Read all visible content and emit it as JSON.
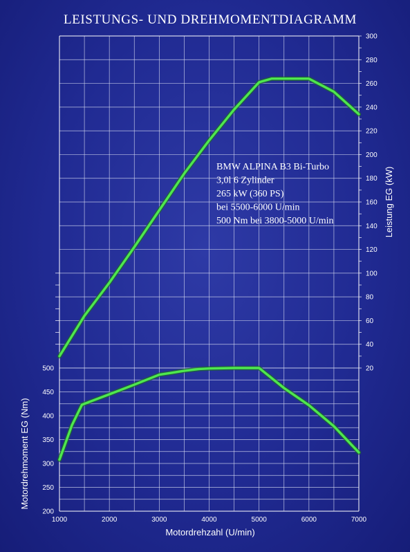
{
  "chart_data": {
    "type": "line",
    "title": "LEISTUNGS- UND DREHMOMENTDIAGRAMM",
    "xlabel": "Motordrehzahl (U/min)",
    "x_ticks": [
      1000,
      2000,
      3000,
      4000,
      5000,
      6000,
      7000
    ],
    "xlim": [
      1000,
      7000
    ],
    "grid": true,
    "annotation": [
      "BMW ALPINA B3 Bi-Turbo",
      "3,0l  6 Zylinder",
      "265 kW (360 PS)",
      "bei 5500-6000 U/min",
      "500 Nm bei 3800-5000  U/min"
    ],
    "series": [
      {
        "axis": "right",
        "axis_label": "Leistung EG (kW)",
        "ylim": [
          20,
          300
        ],
        "y_ticks": [
          20,
          40,
          60,
          80,
          100,
          120,
          140,
          160,
          180,
          200,
          220,
          240,
          260,
          280,
          300
        ],
        "color": "#4ee84e",
        "points": [
          [
            1000,
            30
          ],
          [
            1500,
            64
          ],
          [
            2000,
            92
          ],
          [
            2500,
            122
          ],
          [
            3000,
            153
          ],
          [
            3500,
            184
          ],
          [
            4000,
            212
          ],
          [
            4500,
            238
          ],
          [
            5000,
            261
          ],
          [
            5250,
            264
          ],
          [
            5500,
            264
          ],
          [
            6000,
            264
          ],
          [
            6500,
            253
          ],
          [
            7000,
            234
          ]
        ]
      },
      {
        "axis": "left",
        "axis_label": "Motordrehmoment EG (Nm)",
        "ylim": [
          200,
          500
        ],
        "y_ticks": [
          200,
          250,
          300,
          350,
          400,
          450,
          500
        ],
        "color": "#4ee84e",
        "points": [
          [
            1000,
            308
          ],
          [
            1250,
            380
          ],
          [
            1450,
            423
          ],
          [
            2000,
            445
          ],
          [
            2500,
            465
          ],
          [
            3000,
            486
          ],
          [
            3500,
            494
          ],
          [
            3800,
            498
          ],
          [
            4000,
            499
          ],
          [
            4500,
            500
          ],
          [
            5000,
            500
          ],
          [
            5500,
            458
          ],
          [
            6000,
            422
          ],
          [
            6500,
            378
          ],
          [
            7000,
            323
          ]
        ]
      }
    ]
  }
}
